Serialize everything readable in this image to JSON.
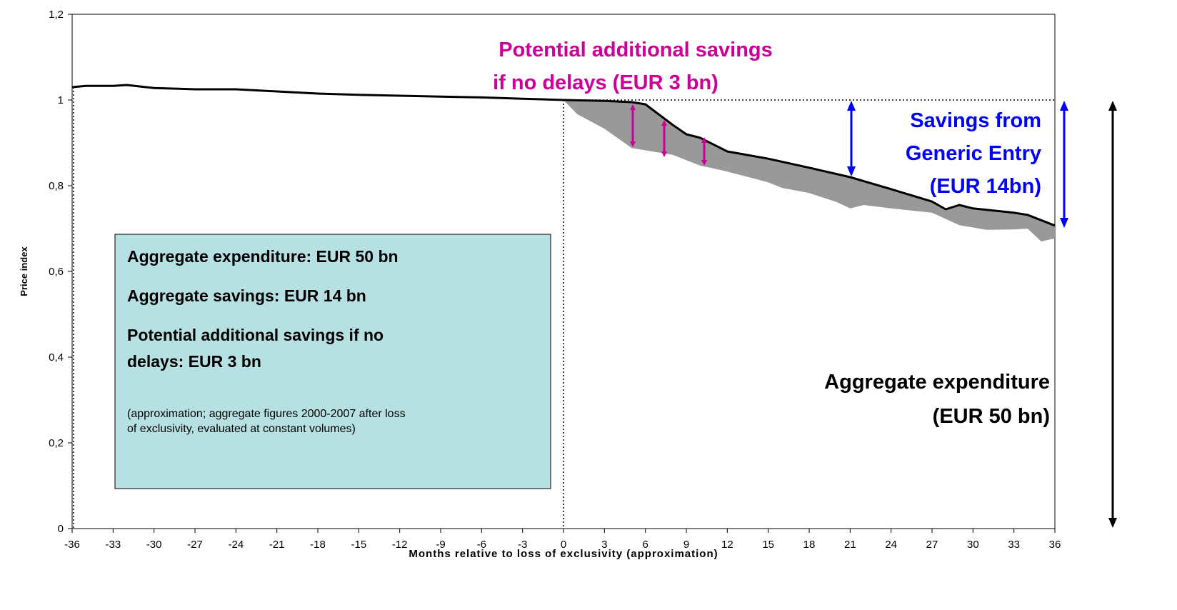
{
  "chart_data": {
    "type": "line",
    "y_label": "Price index",
    "x_label": "Months relative to loss of exclusivity (approximation)",
    "xlim": [
      -36,
      36
    ],
    "xticks": [
      -36,
      -33,
      -30,
      -27,
      -24,
      -21,
      -18,
      -15,
      -12,
      -9,
      -6,
      -3,
      0,
      3,
      6,
      9,
      12,
      15,
      18,
      21,
      24,
      27,
      30,
      33,
      36
    ],
    "ylim": [
      0,
      1.2
    ],
    "yticks": [
      0,
      {
        "value": 0.2,
        "label": "0,2"
      },
      {
        "value": 0.4,
        "label": "0,4"
      },
      {
        "value": 0.6,
        "label": "0,6"
      },
      {
        "value": 0.8,
        "label": "0,8"
      },
      1,
      {
        "value": 1.2,
        "label": "1,2"
      }
    ],
    "series": [
      {
        "color": "#000000",
        "x": [
          -36,
          -35,
          -33,
          -32,
          -30,
          -27,
          -24,
          -21,
          -18,
          -15,
          -12,
          -9,
          -6,
          -3,
          0,
          3,
          5,
          6,
          8,
          9,
          10,
          12,
          15,
          18,
          21,
          24,
          27,
          28,
          29,
          30,
          33,
          34,
          36
        ],
        "values": [
          1.03,
          1.033,
          1.033,
          1.035,
          1.028,
          1.025,
          1.025,
          1.02,
          1.015,
          1.012,
          1.01,
          1.008,
          1.006,
          1.003,
          1.0,
          0.998,
          0.995,
          0.99,
          0.942,
          0.92,
          0.912,
          0.88,
          0.863,
          0.842,
          0.82,
          0.792,
          0.763,
          0.745,
          0.755,
          0.747,
          0.737,
          0.732,
          0.707
        ]
      },
      {
        "color": "#999999",
        "x": [
          0,
          1,
          3,
          5,
          8,
          10,
          12,
          15,
          16,
          18,
          20,
          21,
          22,
          24,
          27,
          29,
          31,
          33,
          34,
          35,
          36
        ],
        "values": [
          1.0,
          0.967,
          0.933,
          0.888,
          0.872,
          0.847,
          0.833,
          0.808,
          0.795,
          0.783,
          0.762,
          0.747,
          0.755,
          0.747,
          0.737,
          0.708,
          0.697,
          0.698,
          0.7,
          0.67,
          0.677
        ]
      }
    ],
    "annotations": {
      "potential": [
        "Potential additional savings",
        "if no delays (EUR 3 bn)"
      ],
      "savings": [
        "Savings from",
        "Generic Entry",
        "(EUR 14bn)"
      ],
      "expenditure": [
        "Aggregate expenditure",
        "(EUR 50 bn)"
      ]
    },
    "box": {
      "lines": [
        "Aggregate expenditure: EUR 50 bn",
        "Aggregate savings: EUR 14 bn",
        "Potential additional savings if no",
        "delays: EUR 3 bn"
      ],
      "note": [
        "(approximation; aggregate figures 2000-2007 after loss",
        "of exclusivity, evaluated at constant volumes)"
      ]
    }
  }
}
